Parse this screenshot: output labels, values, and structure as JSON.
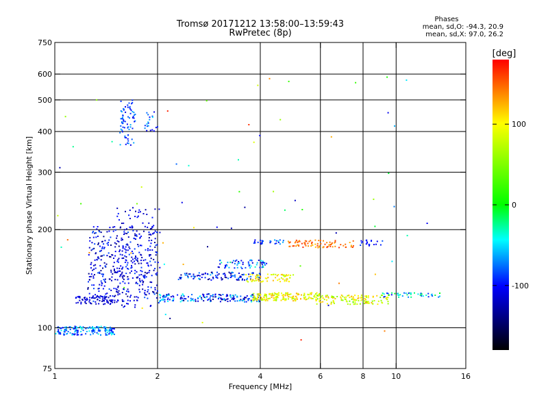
{
  "title_line1": "Tromsø 20171212 13:58:00–13:59:43",
  "title_line2": "RwPretec (8p)",
  "phases": {
    "heading": "Phases",
    "line_o": "mean, sd,O: -94.3, 20.9",
    "line_x": "mean, sd,X: 97.0, 26.2"
  },
  "colorbar": {
    "unit": "[deg]",
    "range": [
      -180,
      180
    ],
    "ticks": [
      100,
      0,
      -100
    ],
    "tick_labels": [
      "100",
      "0",
      "-100"
    ]
  },
  "chart_data": {
    "type": "scatter",
    "xlabel": "Frequency [MHz]",
    "ylabel": "Stationary phase Virtual Height [km]",
    "xscale": "log",
    "yscale": "log",
    "xlim": [
      1,
      16
    ],
    "ylim": [
      75,
      750
    ],
    "xticks": [
      1,
      2,
      4,
      6,
      8,
      10,
      16
    ],
    "xtick_labels": [
      "1",
      "2",
      "4",
      "6",
      "8",
      "10",
      "16"
    ],
    "yticks": [
      75,
      100,
      200,
      300,
      400,
      500,
      600,
      750
    ],
    "ytick_labels": [
      "75",
      "100",
      "200",
      "300",
      "400",
      "500",
      "600",
      "750"
    ],
    "grid_x": [
      2,
      4,
      6,
      8,
      10
    ],
    "grid_y": [
      100,
      200,
      300,
      400,
      500,
      600
    ],
    "color_variable": "phase [deg]",
    "clusters": [
      {
        "x": [
          1.0,
          1.5
        ],
        "y": [
          95,
          101
        ],
        "c": [
          -110,
          -40
        ],
        "n": 150
      },
      {
        "x": [
          1.25,
          2.0
        ],
        "y": [
          120,
          205
        ],
        "c": [
          -140,
          -80
        ],
        "n": 360
      },
      {
        "x": [
          1.5,
          2.05
        ],
        "y": [
          115,
          235
        ],
        "c": [
          -130,
          -90
        ],
        "n": 130
      },
      {
        "x": [
          1.15,
          1.5
        ],
        "y": [
          118,
          125
        ],
        "c": [
          -130,
          -100
        ],
        "n": 70
      },
      {
        "x": [
          2.0,
          4.0
        ],
        "y": [
          120,
          127
        ],
        "c": [
          -140,
          -40
        ],
        "n": 180
      },
      {
        "x": [
          2.3,
          4.0
        ],
        "y": [
          140,
          148
        ],
        "c": [
          -140,
          -60
        ],
        "n": 110
      },
      {
        "x": [
          3.0,
          4.2
        ],
        "y": [
          152,
          162
        ],
        "c": [
          -120,
          -20
        ],
        "n": 60
      },
      {
        "x": [
          3.8,
          6.0
        ],
        "y": [
          121,
          128
        ],
        "c": [
          60,
          130
        ],
        "n": 160
      },
      {
        "x": [
          3.6,
          5.0
        ],
        "y": [
          138,
          146
        ],
        "c": [
          70,
          130
        ],
        "n": 70
      },
      {
        "x": [
          5.8,
          9.5
        ],
        "y": [
          118,
          126
        ],
        "c": [
          40,
          130
        ],
        "n": 130
      },
      {
        "x": [
          9.0,
          13.5
        ],
        "y": [
          124,
          128
        ],
        "c": [
          -100,
          0
        ],
        "n": 45
      },
      {
        "x": [
          4.8,
          7.5
        ],
        "y": [
          176,
          186
        ],
        "c": [
          120,
          170
        ],
        "n": 80
      },
      {
        "x": [
          3.8,
          4.8
        ],
        "y": [
          180,
          186
        ],
        "c": [
          -110,
          -60
        ],
        "n": 25
      },
      {
        "x": [
          7.5,
          9.2
        ],
        "y": [
          178,
          186
        ],
        "c": [
          -110,
          -80
        ],
        "n": 20
      },
      {
        "x": [
          1.55,
          1.72
        ],
        "y": [
          360,
          500
        ],
        "c": [
          -110,
          -60
        ],
        "n": 70
      },
      {
        "x": [
          1.8,
          2.0
        ],
        "y": [
          400,
          460
        ],
        "c": [
          -110,
          -50
        ],
        "n": 20
      },
      {
        "x": [
          1.0,
          14.0
        ],
        "y": [
          90,
          640
        ],
        "c": [
          -140,
          170
        ],
        "n": 70
      }
    ]
  }
}
